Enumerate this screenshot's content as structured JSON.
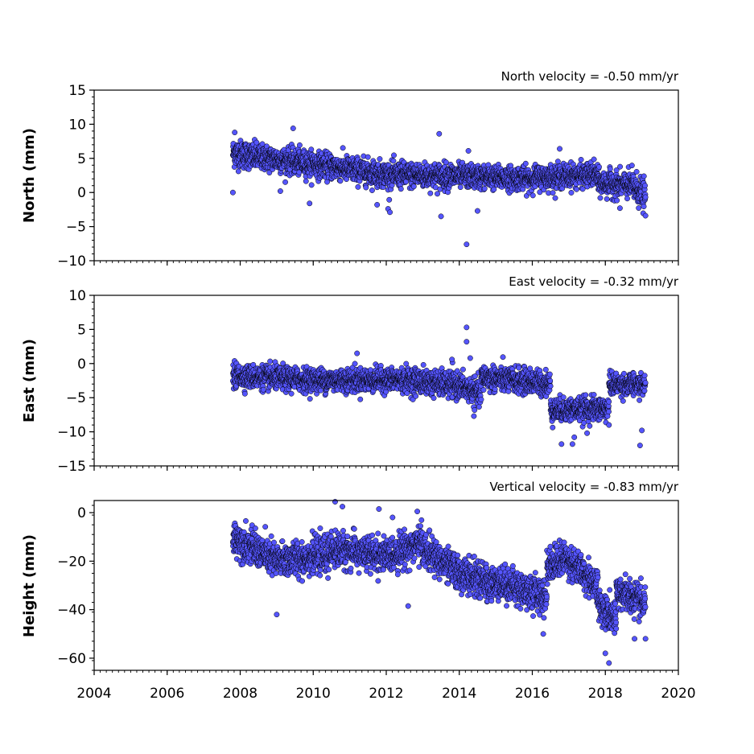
{
  "chart_data": [
    {
      "type": "scatter",
      "title": "North velocity = -0.50 mm/yr",
      "ylabel": "North (mm)",
      "xlim": [
        2004,
        2020
      ],
      "ylim": [
        -10,
        15
      ],
      "yticks": [
        15,
        10,
        5,
        0,
        -5,
        -10
      ],
      "xticks": [
        2004,
        2006,
        2008,
        2010,
        2012,
        2014,
        2016,
        2018,
        2020
      ],
      "show_xtick_labels": false,
      "marker_color": "#5555ff",
      "marker_edge": "#000000",
      "segments": [
        {
          "x": [
            2007.8,
            2008.5
          ],
          "y": [
            5.8,
            5.2
          ],
          "spread": 1.4
        },
        {
          "x": [
            2008.5,
            2010.5
          ],
          "y": [
            5.2,
            3.8
          ],
          "spread": 1.3
        },
        {
          "x": [
            2010.5,
            2012.0
          ],
          "y": [
            3.8,
            2.6
          ],
          "spread": 1.3
        },
        {
          "x": [
            2012.0,
            2014.0
          ],
          "y": [
            2.6,
            2.4
          ],
          "spread": 1.3
        },
        {
          "x": [
            2014.0,
            2016.0
          ],
          "y": [
            2.4,
            2.0
          ],
          "spread": 1.2
        },
        {
          "x": [
            2016.0,
            2017.8
          ],
          "y": [
            2.2,
            2.6
          ],
          "spread": 1.2
        },
        {
          "x": [
            2017.8,
            2018.7
          ],
          "y": [
            1.4,
            1.0
          ],
          "spread": 1.3
        },
        {
          "x": [
            2018.7,
            2019.1
          ],
          "y": [
            1.2,
            -0.6
          ],
          "spread": 1.6
        }
      ],
      "outliers": [
        {
          "x": 2007.8,
          "y": 0.0
        },
        {
          "x": 2007.85,
          "y": 8.8
        },
        {
          "x": 2009.1,
          "y": 0.2
        },
        {
          "x": 2009.45,
          "y": 9.4
        },
        {
          "x": 2009.9,
          "y": -1.6
        },
        {
          "x": 2011.75,
          "y": -1.8
        },
        {
          "x": 2012.05,
          "y": -2.4
        },
        {
          "x": 2012.1,
          "y": -2.9
        },
        {
          "x": 2013.45,
          "y": 8.6
        },
        {
          "x": 2013.5,
          "y": -3.5
        },
        {
          "x": 2014.2,
          "y": -7.6
        },
        {
          "x": 2014.25,
          "y": 6.1
        },
        {
          "x": 2014.5,
          "y": -2.7
        },
        {
          "x": 2016.75,
          "y": 6.4
        },
        {
          "x": 2018.4,
          "y": -2.3
        },
        {
          "x": 2019.1,
          "y": -3.4
        }
      ]
    },
    {
      "type": "scatter",
      "title": "East velocity = -0.32 mm/yr",
      "ylabel": "East (mm)",
      "xlim": [
        2004,
        2020
      ],
      "ylim": [
        -15,
        10
      ],
      "yticks": [
        10,
        5,
        0,
        -5,
        -10,
        -15
      ],
      "xticks": [
        2004,
        2006,
        2008,
        2010,
        2012,
        2014,
        2016,
        2018,
        2020
      ],
      "show_xtick_labels": false,
      "marker_color": "#5555ff",
      "marker_edge": "#000000",
      "segments": [
        {
          "x": [
            2007.8,
            2010.0
          ],
          "y": [
            -1.8,
            -2.4
          ],
          "spread": 1.2
        },
        {
          "x": [
            2010.0,
            2012.5
          ],
          "y": [
            -2.4,
            -2.4
          ],
          "spread": 1.2
        },
        {
          "x": [
            2012.5,
            2014.0
          ],
          "y": [
            -2.4,
            -3.2
          ],
          "spread": 1.3
        },
        {
          "x": [
            2014.0,
            2014.6
          ],
          "y": [
            -3.2,
            -4.5
          ],
          "spread": 1.3
        },
        {
          "x": [
            2014.6,
            2016.5
          ],
          "y": [
            -2.0,
            -3.0
          ],
          "spread": 1.3
        },
        {
          "x": [
            2016.5,
            2018.1
          ],
          "y": [
            -6.8,
            -6.6
          ],
          "spread": 1.2
        },
        {
          "x": [
            2018.1,
            2019.1
          ],
          "y": [
            -3.0,
            -3.2
          ],
          "spread": 1.1
        }
      ],
      "outliers": [
        {
          "x": 2014.2,
          "y": 5.3
        },
        {
          "x": 2014.2,
          "y": 3.2
        },
        {
          "x": 2014.3,
          "y": 0.8
        },
        {
          "x": 2013.8,
          "y": 0.6
        },
        {
          "x": 2011.2,
          "y": 1.5
        },
        {
          "x": 2014.4,
          "y": -7.7
        },
        {
          "x": 2016.8,
          "y": -11.8
        },
        {
          "x": 2017.1,
          "y": -11.8
        },
        {
          "x": 2017.15,
          "y": -10.8
        },
        {
          "x": 2017.5,
          "y": -10.2
        },
        {
          "x": 2018.95,
          "y": -12.0
        },
        {
          "x": 2019.0,
          "y": -9.8
        },
        {
          "x": 2018.1,
          "y": -9.0
        }
      ]
    },
    {
      "type": "scatter",
      "title": "Vertical velocity = -0.83 mm/yr",
      "ylabel": "Height (mm)",
      "xlim": [
        2004,
        2020
      ],
      "ylim": [
        -65,
        5
      ],
      "yticks": [
        0,
        -20,
        -40,
        -60
      ],
      "xticks": [
        2004,
        2006,
        2008,
        2010,
        2012,
        2014,
        2016,
        2018,
        2020
      ],
      "xtick_labels": [
        "2004",
        "2006",
        "2008",
        "2010",
        "2012",
        "2014",
        "2016",
        "2018",
        "2020"
      ],
      "show_xtick_labels": true,
      "marker_color": "#5555ff",
      "marker_edge": "#000000",
      "segments": [
        {
          "x": [
            2007.8,
            2009.0
          ],
          "y": [
            -10,
            -20
          ],
          "spread": 5
        },
        {
          "x": [
            2009.0,
            2010.5
          ],
          "y": [
            -20,
            -17
          ],
          "spread": 5
        },
        {
          "x": [
            2010.5,
            2012.0
          ],
          "y": [
            -15,
            -18
          ],
          "spread": 5
        },
        {
          "x": [
            2012.0,
            2013.0
          ],
          "y": [
            -18,
            -12
          ],
          "spread": 5
        },
        {
          "x": [
            2013.0,
            2014.0
          ],
          "y": [
            -15,
            -25
          ],
          "spread": 5
        },
        {
          "x": [
            2014.0,
            2015.0
          ],
          "y": [
            -25,
            -30
          ],
          "spread": 5
        },
        {
          "x": [
            2015.0,
            2016.4
          ],
          "y": [
            -28,
            -35
          ],
          "spread": 5
        },
        {
          "x": [
            2016.4,
            2017.0
          ],
          "y": [
            -22,
            -18
          ],
          "spread": 5
        },
        {
          "x": [
            2017.0,
            2017.8
          ],
          "y": [
            -20,
            -30
          ],
          "spread": 5
        },
        {
          "x": [
            2017.8,
            2018.3
          ],
          "y": [
            -38,
            -45
          ],
          "spread": 5
        },
        {
          "x": [
            2018.3,
            2019.1
          ],
          "y": [
            -32,
            -38
          ],
          "spread": 5
        }
      ],
      "outliers": [
        {
          "x": 2010.6,
          "y": 4.5
        },
        {
          "x": 2010.8,
          "y": 2.5
        },
        {
          "x": 2011.8,
          "y": 1.5
        },
        {
          "x": 2012.85,
          "y": 0.5
        },
        {
          "x": 2012.6,
          "y": -38.5
        },
        {
          "x": 2009.0,
          "y": -42
        },
        {
          "x": 2016.3,
          "y": -50
        },
        {
          "x": 2018.1,
          "y": -62
        },
        {
          "x": 2018.0,
          "y": -58
        },
        {
          "x": 2018.8,
          "y": -52
        },
        {
          "x": 2019.1,
          "y": -52
        }
      ]
    }
  ]
}
